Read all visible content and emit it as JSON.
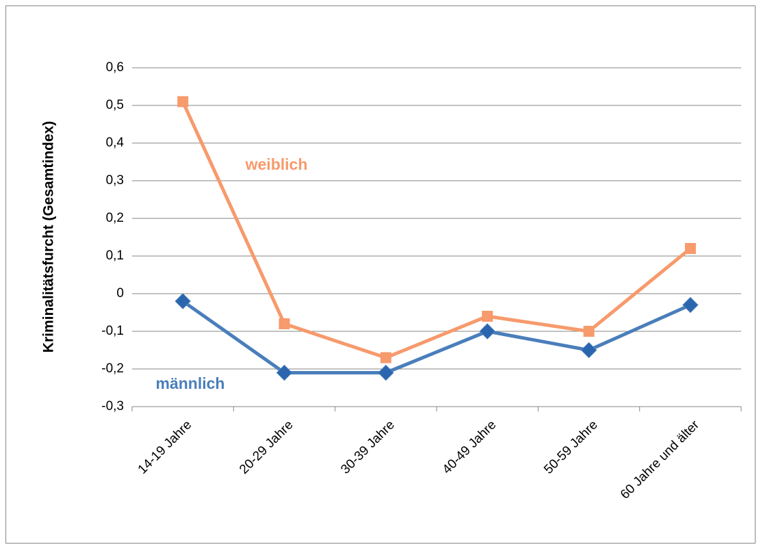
{
  "chart_data": {
    "type": "line",
    "y_label": "Kriminalitätsfurcht (Gesamtindex)",
    "categories": [
      "14-19 Jahre",
      "20-29 Jahre",
      "30-39 Jahre",
      "40-49 Jahre",
      "50-59 Jahre",
      "60 Jahre und älter"
    ],
    "series": [
      {
        "name": "weiblich",
        "color": "#f79a6c",
        "marker": "square",
        "values": [
          0.51,
          -0.08,
          -0.17,
          -0.06,
          -0.1,
          0.12
        ]
      },
      {
        "name": "männlich",
        "color": "#4a7ebb",
        "marker": "diamond",
        "values": [
          -0.02,
          -0.21,
          -0.21,
          -0.1,
          -0.15,
          -0.03
        ]
      }
    ],
    "ylim": [
      -0.3,
      0.6
    ],
    "yticks": [
      {
        "value": -0.3,
        "label": "-0,3"
      },
      {
        "value": -0.2,
        "label": "-0,2"
      },
      {
        "value": -0.1,
        "label": "-0,1"
      },
      0,
      {
        "value": 0.1,
        "label": "0,1"
      },
      {
        "value": 0.2,
        "label": "0,2"
      },
      {
        "value": 0.3,
        "label": "0,3"
      },
      {
        "value": 0.4,
        "label": "0,4"
      },
      {
        "value": 0.5,
        "label": "0,5"
      },
      {
        "value": 0.6,
        "label": "0,6"
      }
    ],
    "grid": true
  }
}
